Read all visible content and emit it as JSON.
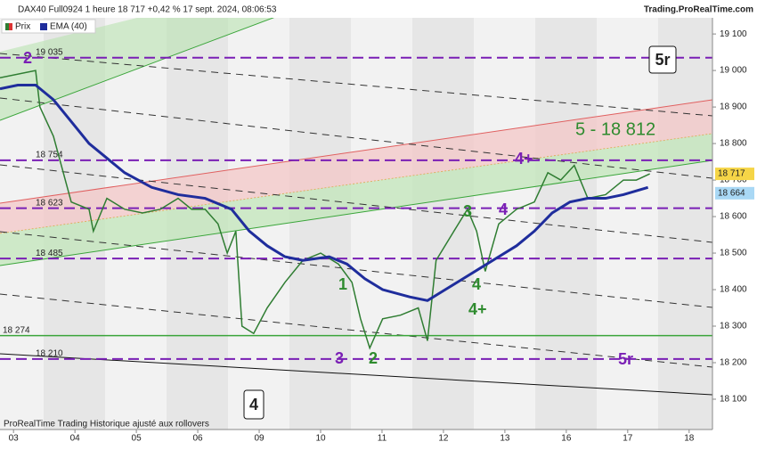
{
  "header": {
    "title": "DAX40 Full0924 1 heure 18 717 +0,42 % 17 sept. 2024, 08:06:53",
    "site": "Trading.ProRealTime.com"
  },
  "footer": "ProRealTime Trading  Historique ajusté aux rollovers",
  "chart_data": {
    "type": "line",
    "series": [
      {
        "name": "Prix",
        "color": "#2f7d32",
        "x": [
          -0.22,
          0.36,
          0.43,
          0.65,
          0.94,
          1.23,
          1.3,
          1.52,
          1.81,
          2.1,
          2.39,
          2.68,
          2.9,
          3.12,
          3.33,
          3.48,
          3.62,
          3.72,
          3.91,
          4.13,
          4.42,
          4.71,
          5.0,
          5.29,
          5.51,
          5.65,
          5.8,
          6.01,
          6.3,
          6.59,
          6.74,
          6.88,
          7.17,
          7.39,
          7.54,
          7.68,
          7.9,
          8.19,
          8.48,
          8.7,
          8.91,
          9.13,
          9.35,
          9.64,
          9.93,
          10.14,
          10.36
        ],
        "values": [
          18980,
          19000,
          18900,
          18820,
          18640,
          18620,
          18560,
          18650,
          18620,
          18610,
          18620,
          18650,
          18620,
          18620,
          18580,
          18500,
          18560,
          18300,
          18280,
          18350,
          18420,
          18480,
          18500,
          18470,
          18420,
          18320,
          18240,
          18320,
          18330,
          18350,
          18260,
          18480,
          18560,
          18620,
          18560,
          18450,
          18580,
          18620,
          18640,
          18720,
          18700,
          18740,
          18650,
          18660,
          18700,
          18700,
          18717
        ]
      },
      {
        "name": "EMA (40)",
        "color": "#1f2d9c",
        "x": [
          -0.22,
          0.07,
          0.36,
          0.65,
          0.94,
          1.23,
          1.52,
          1.81,
          2.25,
          2.68,
          3.12,
          3.55,
          3.84,
          4.13,
          4.42,
          4.71,
          5.14,
          5.43,
          5.72,
          6.01,
          6.45,
          6.74,
          7.03,
          7.32,
          7.61,
          7.9,
          8.19,
          8.48,
          8.77,
          9.06,
          9.35,
          9.64,
          9.93,
          10.33
        ],
        "values": [
          18950,
          18960,
          18960,
          18920,
          18860,
          18800,
          18760,
          18720,
          18680,
          18660,
          18650,
          18620,
          18560,
          18520,
          18490,
          18480,
          18490,
          18470,
          18430,
          18400,
          18380,
          18370,
          18400,
          18430,
          18460,
          18490,
          18520,
          18560,
          18610,
          18640,
          18650,
          18650,
          18660,
          18680
        ]
      }
    ],
    "xlim": [
      -0.22,
      11.38
    ],
    "xticks": [
      {
        "value": 0,
        "label": "03"
      },
      {
        "value": 1,
        "label": "04"
      },
      {
        "value": 2,
        "label": "05"
      },
      {
        "value": 3,
        "label": "06"
      },
      {
        "value": 4,
        "label": "09"
      },
      {
        "value": 5,
        "label": "10"
      },
      {
        "value": 6,
        "label": "11"
      },
      {
        "value": 7,
        "label": "12"
      },
      {
        "value": 8,
        "label": "13"
      },
      {
        "value": 9,
        "label": "16"
      },
      {
        "value": 10,
        "label": "17"
      },
      {
        "value": 11,
        "label": "18"
      }
    ],
    "ylim": [
      18017,
      19193
    ],
    "yticks": [
      {
        "value": 18100,
        "label": "18 100"
      },
      {
        "value": 18200,
        "label": "18 200"
      },
      {
        "value": 18300,
        "label": "18 300"
      },
      {
        "value": 18400,
        "label": "18 400"
      },
      {
        "value": 18500,
        "label": "18 500"
      },
      {
        "value": 18600,
        "label": "18 600"
      },
      {
        "value": 18700,
        "label": "18 700"
      },
      {
        "value": 18800,
        "label": "18 800"
      },
      {
        "value": 18900,
        "label": "18 900"
      },
      {
        "value": 19000,
        "label": "19 000"
      },
      {
        "value": 19100,
        "label": "19 100"
      }
    ],
    "levels": [
      {
        "value": 19035,
        "label": "19 035",
        "color": "#7a1fb5"
      },
      {
        "value": 18754,
        "label": "18 754",
        "color": "#7a1fb5"
      },
      {
        "value": 18623,
        "label": "18 623",
        "color": "#7a1fb5"
      },
      {
        "value": 18485,
        "label": "18 485",
        "color": "#7a1fb5"
      },
      {
        "value": 18274,
        "label": "18 274",
        "color": "#3aa53a"
      },
      {
        "value": 18210,
        "label": "18 210",
        "color": "#7a1fb5"
      }
    ],
    "last_price": {
      "value": 18717,
      "label": "18 717"
    },
    "ema_last": {
      "value": 18664,
      "label": "18 664"
    },
    "annotations": [
      "2",
      "5r",
      "5 - 18 812",
      "4+",
      "3",
      "4",
      "1",
      "4",
      "4+",
      "3",
      "2",
      "5r",
      "4"
    ]
  }
}
